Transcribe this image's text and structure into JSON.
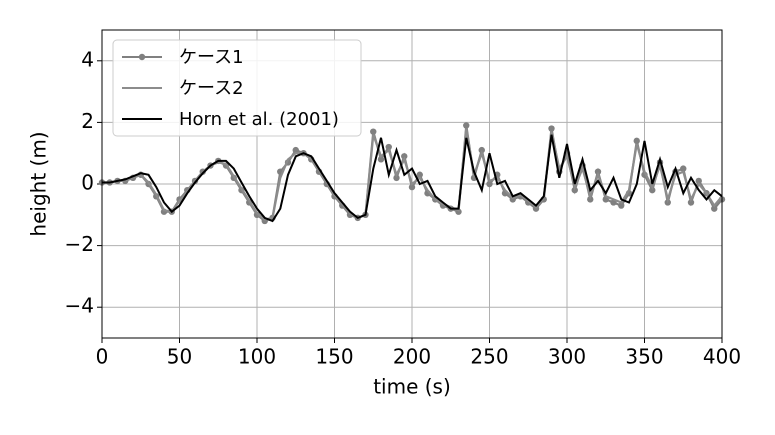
{
  "chart_data": {
    "type": "line",
    "xlabel": "time (s)",
    "ylabel": "height (m)",
    "xlim": [
      0,
      400
    ],
    "ylim": [
      -5,
      5
    ],
    "xticks": [
      0,
      50,
      100,
      150,
      200,
      250,
      300,
      350,
      400
    ],
    "yticks": [
      {
        "value": -4,
        "label": "−4"
      },
      {
        "value": -2,
        "label": "−2"
      },
      0,
      2,
      4
    ],
    "grid": true,
    "legend": "upper left",
    "x": [
      0,
      5,
      10,
      15,
      20,
      25,
      30,
      35,
      40,
      45,
      50,
      55,
      60,
      65,
      70,
      75,
      80,
      85,
      90,
      95,
      100,
      105,
      110,
      115,
      120,
      125,
      130,
      135,
      140,
      145,
      150,
      155,
      160,
      165,
      170,
      175,
      180,
      185,
      190,
      195,
      200,
      205,
      210,
      215,
      220,
      225,
      230,
      235,
      240,
      245,
      250,
      255,
      260,
      265,
      270,
      275,
      280,
      285,
      290,
      295,
      300,
      305,
      310,
      315,
      320,
      325,
      330,
      335,
      340,
      345,
      350,
      355,
      360,
      365,
      370,
      375,
      380,
      385,
      390,
      395,
      400
    ],
    "series": [
      {
        "name": "ケース1",
        "color": "#808080",
        "marker": true,
        "values": [
          0.05,
          0.05,
          0.1,
          0.1,
          0.2,
          0.3,
          0,
          -0.4,
          -0.9,
          -0.9,
          -0.5,
          -0.2,
          0.1,
          0.4,
          0.6,
          0.75,
          0.6,
          0.2,
          -0.2,
          -0.6,
          -1.0,
          -1.2,
          -1.1,
          0.4,
          0.7,
          1.1,
          1.0,
          0.8,
          0.4,
          0,
          -0.4,
          -0.7,
          -1.0,
          -1.1,
          -1.0,
          1.7,
          0.8,
          1.2,
          0.2,
          0.9,
          -0.1,
          0.3,
          -0.3,
          -0.5,
          -0.7,
          -0.8,
          -0.9,
          1.9,
          0.2,
          1.1,
          0.0,
          0.3,
          -0.3,
          -0.5,
          -0.4,
          -0.6,
          -0.8,
          -0.5,
          1.8,
          0.4,
          1.0,
          -0.2,
          0.6,
          -0.5,
          0.4,
          -0.5,
          -0.6,
          -0.7,
          -0.3,
          1.4,
          0.3,
          -0.2,
          0.7,
          -0.6,
          0.4,
          0.5,
          -0.6,
          0.1,
          -0.3,
          -0.8,
          -0.5
        ]
      },
      {
        "name": "ケース2",
        "color": "#8c8c8c",
        "marker": false,
        "values": [
          0.05,
          0.05,
          0.1,
          0.12,
          0.22,
          0.3,
          0.05,
          -0.35,
          -0.85,
          -0.9,
          -0.55,
          -0.25,
          0.1,
          0.35,
          0.6,
          0.7,
          0.65,
          0.25,
          -0.15,
          -0.55,
          -0.95,
          -1.15,
          -1.1,
          0.2,
          0.8,
          1.0,
          1.0,
          0.8,
          0.45,
          0.05,
          -0.35,
          -0.65,
          -0.95,
          -1.1,
          -1.0,
          1.6,
          0.9,
          1.1,
          0.3,
          0.8,
          0.0,
          0.2,
          -0.2,
          -0.5,
          -0.65,
          -0.75,
          -0.85,
          1.8,
          0.3,
          1.0,
          0.1,
          0.2,
          -0.2,
          -0.45,
          -0.35,
          -0.55,
          -0.75,
          -0.45,
          1.7,
          0.5,
          0.9,
          -0.1,
          0.5,
          -0.4,
          0.3,
          -0.4,
          -0.5,
          -0.6,
          -0.2,
          1.3,
          0.4,
          -0.1,
          0.6,
          -0.5,
          0.3,
          0.4,
          -0.5,
          0.0,
          -0.3,
          -0.7,
          -0.4
        ]
      },
      {
        "name": "Horn et al. (2001)",
        "color": "#000000",
        "marker": false,
        "values": [
          0.05,
          0.05,
          0.1,
          0.15,
          0.25,
          0.35,
          0.3,
          -0.1,
          -0.6,
          -0.9,
          -0.7,
          -0.3,
          0.05,
          0.35,
          0.6,
          0.75,
          0.75,
          0.5,
          0.05,
          -0.4,
          -0.8,
          -1.1,
          -1.2,
          -0.8,
          0.3,
          0.9,
          1.0,
          0.9,
          0.5,
          0.1,
          -0.3,
          -0.6,
          -0.9,
          -1.1,
          -1.0,
          0.5,
          1.5,
          0.3,
          1.1,
          0.3,
          0.5,
          0.0,
          0.1,
          -0.4,
          -0.6,
          -0.8,
          -0.8,
          1.5,
          0.4,
          -0.2,
          1.0,
          0.0,
          0.1,
          -0.4,
          -0.3,
          -0.5,
          -0.7,
          -0.4,
          1.6,
          0.2,
          1.3,
          0.0,
          0.8,
          -0.2,
          0.1,
          -0.3,
          0.2,
          -0.5,
          -0.6,
          0.0,
          1.4,
          0.0,
          0.8,
          -0.1,
          0.5,
          -0.3,
          0.2,
          -0.2,
          -0.5,
          -0.2,
          -0.4
        ]
      }
    ]
  }
}
